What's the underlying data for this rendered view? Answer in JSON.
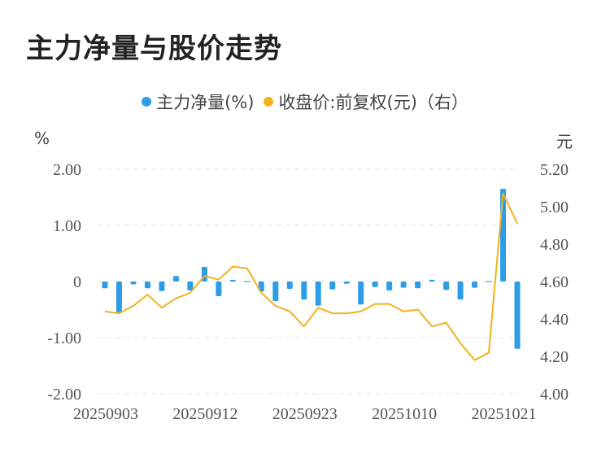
{
  "title": "主力净量与股价走势",
  "legend": {
    "series1": "主力净量(%)",
    "series2": "收盘价:前复权(元)（右）"
  },
  "units": {
    "left": "%",
    "right": "元"
  },
  "colors": {
    "bar": "#2e9de8",
    "line": "#f0b31c",
    "grid": "#e6e6e6",
    "axis_text": "#555555"
  },
  "chart_data": {
    "type": "bar+line",
    "x_tick_labels": [
      "20250903",
      "20250912",
      "20250923",
      "20251010",
      "20251021"
    ],
    "x_tick_indices": [
      0,
      7,
      14,
      21,
      28
    ],
    "y_left": {
      "ticks": [
        2,
        1,
        0,
        -1,
        -2
      ],
      "tick_labels": [
        "2.00",
        "1.00",
        "0",
        "-1.00",
        "-2.00"
      ],
      "lim": [
        -2,
        2
      ]
    },
    "y_right": {
      "ticks": [
        5.2,
        5.0,
        4.8,
        4.6,
        4.4,
        4.2,
        4.0
      ],
      "tick_labels": [
        "5.20",
        "5.00",
        "4.80",
        "4.60",
        "4.40",
        "4.20",
        "4.00"
      ],
      "lim": [
        4.0,
        5.2
      ]
    },
    "grid": true,
    "series": [
      {
        "name": "主力净量(%)",
        "type": "bar",
        "axis": "left",
        "values": [
          -0.12,
          -0.55,
          -0.05,
          -0.12,
          -0.17,
          0.1,
          -0.16,
          0.26,
          -0.26,
          0.03,
          0.0,
          -0.18,
          -0.35,
          -0.13,
          -0.32,
          -0.43,
          -0.14,
          -0.04,
          -0.41,
          -0.1,
          -0.16,
          -0.11,
          -0.12,
          0.03,
          -0.15,
          -0.32,
          -0.11,
          0.0,
          1.65,
          -1.2
        ]
      },
      {
        "name": "收盘价:前复权(元)（右）",
        "type": "line",
        "axis": "right",
        "values": [
          4.44,
          4.43,
          4.47,
          4.53,
          4.46,
          4.51,
          4.54,
          4.63,
          4.61,
          4.68,
          4.67,
          4.54,
          4.47,
          4.44,
          4.36,
          4.46,
          4.43,
          4.43,
          4.44,
          4.48,
          4.48,
          4.44,
          4.45,
          4.36,
          4.38,
          4.27,
          4.18,
          4.22,
          5.07,
          4.91
        ]
      }
    ]
  }
}
